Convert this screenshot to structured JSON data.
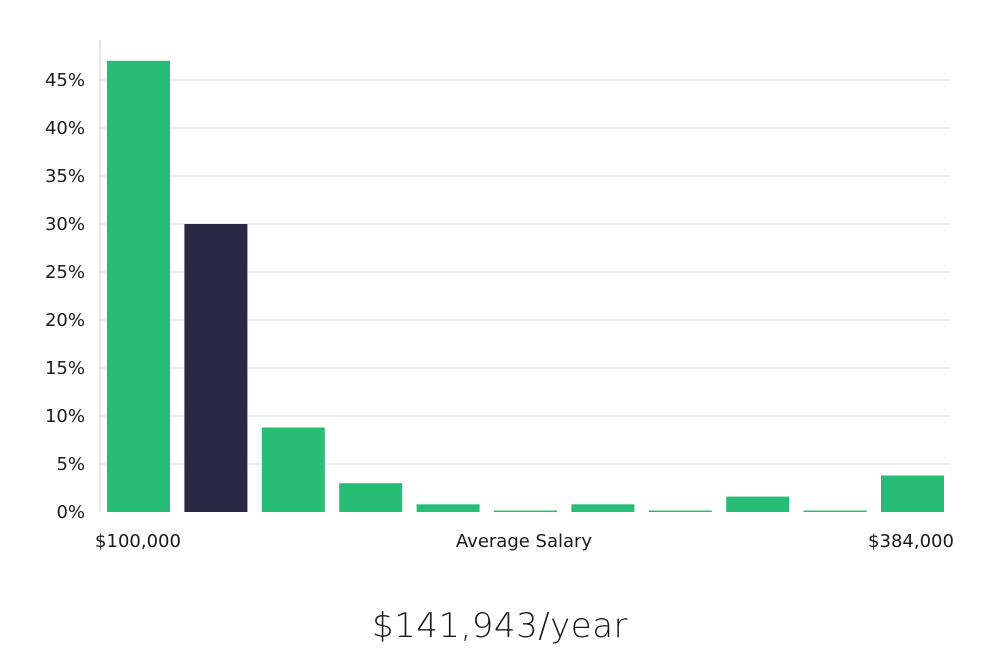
{
  "chart_data": {
    "type": "bar",
    "xlabel": "Average Salary",
    "x_range_labels": [
      "$100,000",
      "$384,000"
    ],
    "yticks": [
      "0%",
      "5%",
      "10%",
      "15%",
      "20%",
      "25%",
      "30%",
      "35%",
      "40%",
      "45%"
    ],
    "ylim": [
      0,
      50
    ],
    "grid": true,
    "values": [
      47,
      30,
      8.8,
      3,
      0.8,
      0.1,
      0.8,
      0.1,
      1.6,
      0.1,
      3.8
    ],
    "highlight_index": 1,
    "colors": {
      "bar": "#27bd76",
      "highlight": "#2a2744"
    }
  },
  "salary": {
    "value": "$141,943/year"
  }
}
